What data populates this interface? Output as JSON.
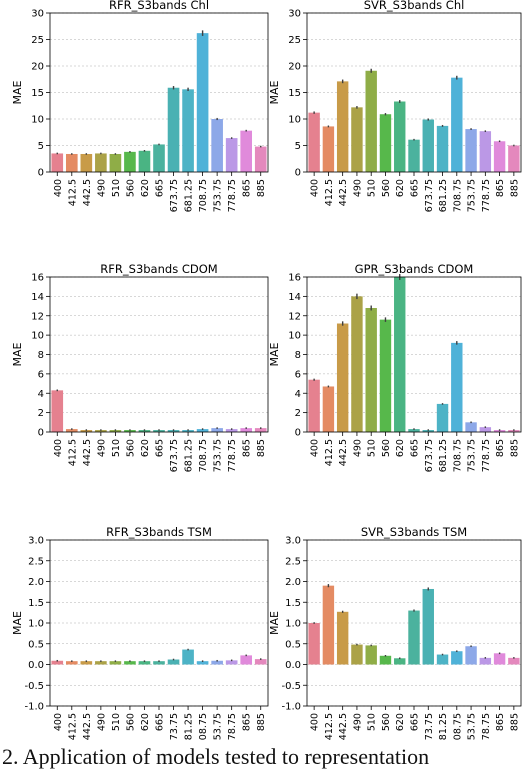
{
  "figure": {
    "caption": "2. Application of models tested to representation"
  },
  "chart_data": [
    {
      "type": "bar",
      "title": "RFR_S3bands Chl",
      "xlabel": "",
      "ylabel": "MAE",
      "ylim": [
        0,
        30
      ],
      "yticks": [
        0,
        5,
        10,
        15,
        20,
        25,
        30
      ],
      "grid": true,
      "categories": [
        "400",
        "412.5",
        "442.5",
        "490",
        "510",
        "560",
        "620",
        "665",
        "673.75",
        "681.25",
        "708.75",
        "753.75",
        "778.75",
        "865",
        "885"
      ],
      "values": [
        3.5,
        3.4,
        3.4,
        3.5,
        3.4,
        3.8,
        4.0,
        5.2,
        15.9,
        15.6,
        26.2,
        10.0,
        6.4,
        7.8,
        4.8
      ]
    },
    {
      "type": "bar",
      "title": "SVR_S3bands Chl",
      "xlabel": "",
      "ylabel": "MAE",
      "ylim": [
        0,
        30
      ],
      "yticks": [
        0,
        5,
        10,
        15,
        20,
        25,
        30
      ],
      "grid": true,
      "categories": [
        "400",
        "412.5",
        "442.5",
        "490",
        "510",
        "560",
        "620",
        "665",
        "673.75",
        "681.25",
        "708.75",
        "753.75",
        "778.75",
        "865",
        "885"
      ],
      "values": [
        11.2,
        8.6,
        17.1,
        12.2,
        19.1,
        10.9,
        13.3,
        6.1,
        9.9,
        8.7,
        17.8,
        8.1,
        7.7,
        5.8,
        5.0
      ]
    },
    {
      "type": "bar",
      "title": "RFR_S3bands CDOM",
      "xlabel": "",
      "ylabel": "MAE",
      "ylim": [
        0,
        16
      ],
      "yticks": [
        0,
        2,
        4,
        6,
        8,
        10,
        12,
        14,
        16
      ],
      "grid": true,
      "categories": [
        "400",
        "412.5",
        "442.5",
        "490",
        "510",
        "560",
        "620",
        "665",
        "673.75",
        "681.25",
        "708.75",
        "753.75",
        "778.75",
        "865",
        "885"
      ],
      "values": [
        4.3,
        0.3,
        0.2,
        0.2,
        0.2,
        0.2,
        0.2,
        0.2,
        0.2,
        0.2,
        0.3,
        0.4,
        0.3,
        0.4,
        0.4
      ]
    },
    {
      "type": "bar",
      "title": "GPR_S3bands CDOM",
      "xlabel": "",
      "ylabel": "MAE",
      "ylim": [
        0,
        16
      ],
      "yticks": [
        0,
        2,
        4,
        6,
        8,
        10,
        12,
        14,
        16
      ],
      "grid": true,
      "categories": [
        "400",
        "412.5",
        "442.5",
        "490",
        "510",
        "560",
        "620",
        "665",
        "673.75",
        "681.25",
        "708.75",
        "753.75",
        "778.75",
        "865",
        "885"
      ],
      "values": [
        5.4,
        4.7,
        11.2,
        14.0,
        12.8,
        11.6,
        16.0,
        0.3,
        0.2,
        2.9,
        9.2,
        1.0,
        0.5,
        0.2,
        0.2
      ]
    },
    {
      "type": "bar",
      "title": "RFR_S3bands TSM",
      "xlabel": "",
      "ylabel": "MAE",
      "ylim": [
        -1.0,
        3.0
      ],
      "yticks": [
        -1.0,
        -0.5,
        0.0,
        0.5,
        1.0,
        1.5,
        2.0,
        2.5,
        3.0
      ],
      "grid": true,
      "categories": [
        "400",
        "412.5",
        "442.5",
        "490",
        "510",
        "560",
        "620",
        "665",
        "673.75",
        "681.25",
        "708.75",
        "753.75",
        "778.75",
        "865",
        "885"
      ],
      "values": [
        0.09,
        0.08,
        0.08,
        0.08,
        0.08,
        0.08,
        0.08,
        0.08,
        0.12,
        0.36,
        0.08,
        0.09,
        0.1,
        0.22,
        0.13
      ]
    },
    {
      "type": "bar",
      "title": "SVR_S3bands TSM",
      "xlabel": "",
      "ylabel": "MAE",
      "ylim": [
        -1.0,
        3.0
      ],
      "yticks": [
        -1.0,
        -0.5,
        0.0,
        0.5,
        1.0,
        1.5,
        2.0,
        2.5,
        3.0
      ],
      "grid": true,
      "categories": [
        "400",
        "412.5",
        "442.5",
        "490",
        "510",
        "560",
        "620",
        "665",
        "673.75",
        "681.25",
        "708.75",
        "753.75",
        "778.75",
        "865",
        "885"
      ],
      "values": [
        1.0,
        1.9,
        1.27,
        0.48,
        0.46,
        0.21,
        0.15,
        1.3,
        1.82,
        0.24,
        0.32,
        0.44,
        0.16,
        0.27,
        0.16
      ]
    }
  ],
  "colors": {
    "bars": [
      "#e5818f",
      "#e48b63",
      "#c89b48",
      "#aba247",
      "#8fad47",
      "#57b84b",
      "#4ab483",
      "#4bb29e",
      "#4ab1b3",
      "#4db3c6",
      "#4fb2d8",
      "#8da8e8",
      "#bb98e6",
      "#e08adb",
      "#e488bd"
    ],
    "grid": "#b0b0b0",
    "axis": "#000000",
    "errorbar": "#3f3f3f"
  }
}
